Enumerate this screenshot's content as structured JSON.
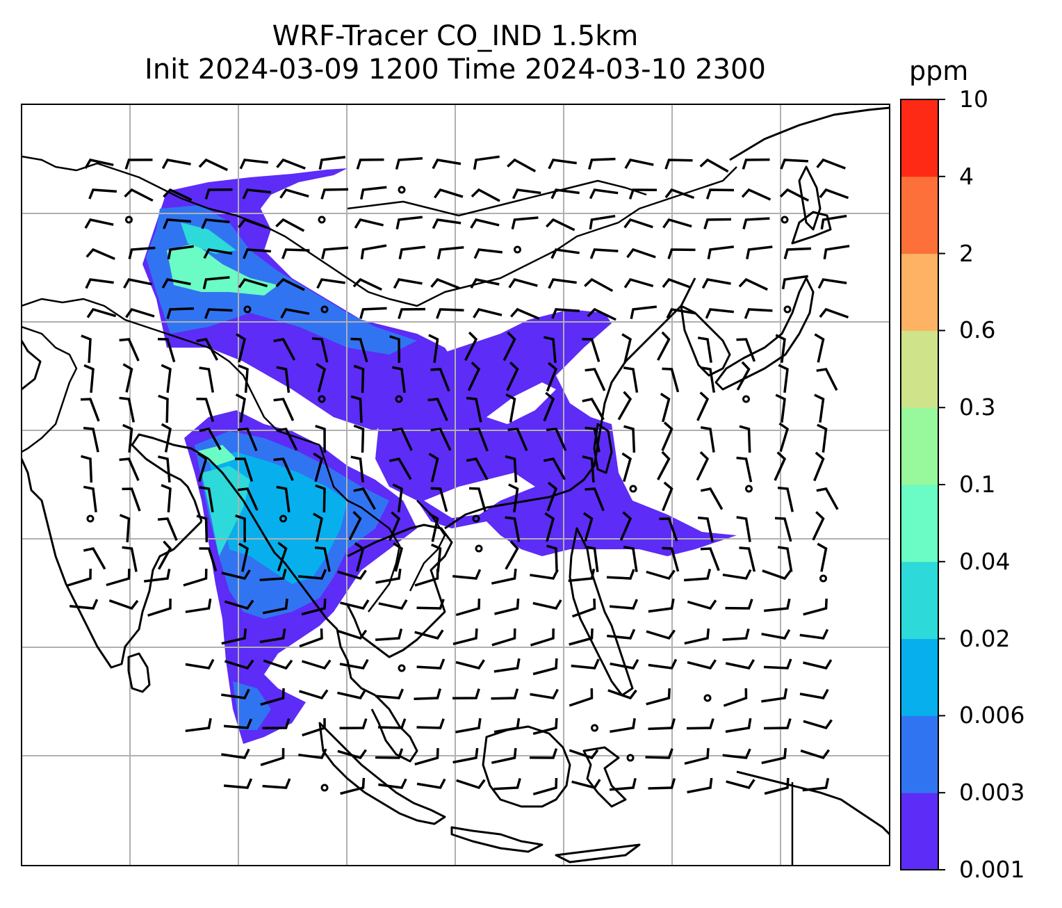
{
  "title": {
    "line1": "WRF-Tracer CO_IND 1.5km",
    "line2": "Init 2024-03-09 1200 Time 2024-03-10 2300"
  },
  "colorbar": {
    "unit": "ppm",
    "levels": [
      "0.001",
      "0.003",
      "0.006",
      "0.02",
      "0.04",
      "0.1",
      "0.3",
      "0.6",
      "2",
      "4",
      "10"
    ],
    "colors": [
      "#5d2cf6",
      "#3174f2",
      "#07b0ec",
      "#2dd9d9",
      "#6bfbc4",
      "#97f89c",
      "#cfe38a",
      "#feb263",
      "#fe7039",
      "#fe2a16"
    ]
  },
  "map": {
    "features": [
      "coastlines",
      "country-borders",
      "lat-lon-gridlines",
      "wind-barbs",
      "tracer-concentration-fill"
    ],
    "grid": true
  }
}
